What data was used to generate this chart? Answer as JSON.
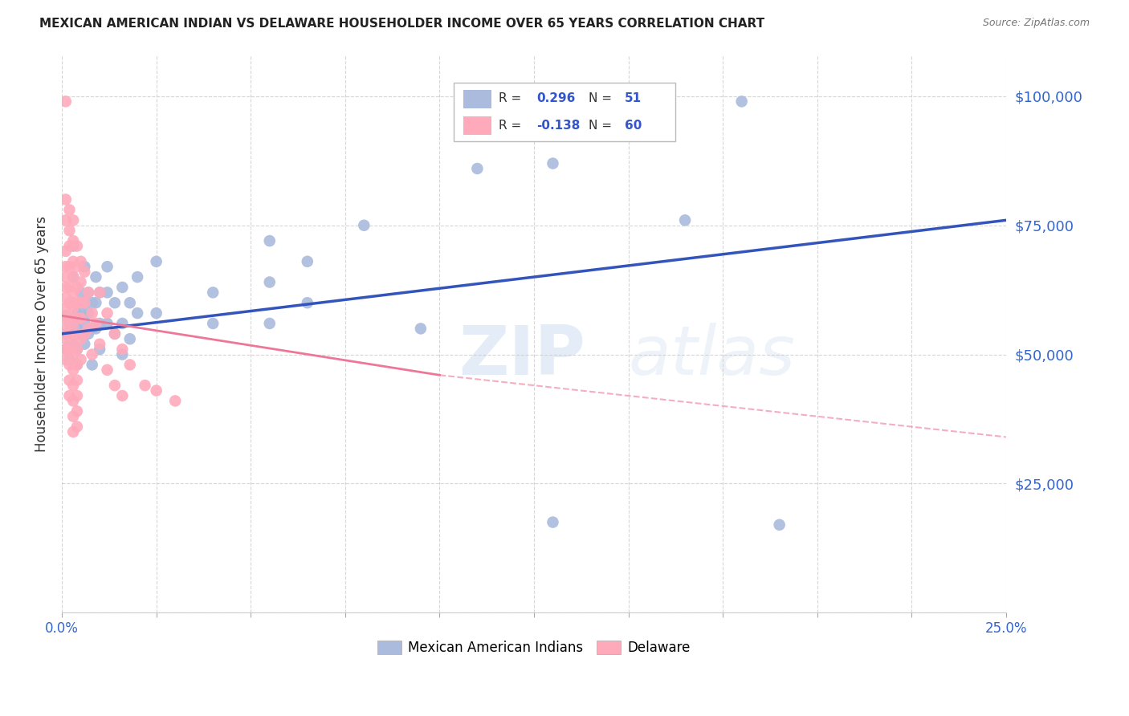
{
  "title": "MEXICAN AMERICAN INDIAN VS DELAWARE HOUSEHOLDER INCOME OVER 65 YEARS CORRELATION CHART",
  "source": "Source: ZipAtlas.com",
  "ylabel": "Householder Income Over 65 years",
  "watermark": "ZIPatlas",
  "y_ticks": [
    0,
    25000,
    50000,
    75000,
    100000
  ],
  "y_tick_labels": [
    "",
    "$25,000",
    "$50,000",
    "$75,000",
    "$100,000"
  ],
  "x_range": [
    0.0,
    0.25
  ],
  "y_range": [
    0,
    108000
  ],
  "blue_color": "#aabbdd",
  "pink_color": "#ffaabb",
  "blue_line_color": "#3355bb",
  "pink_line_color": "#ee7799",
  "blue_scatter": [
    [
      0.001,
      57500
    ],
    [
      0.001,
      54000
    ],
    [
      0.001,
      51000
    ],
    [
      0.002,
      60000
    ],
    [
      0.002,
      56000
    ],
    [
      0.002,
      52000
    ],
    [
      0.002,
      49000
    ],
    [
      0.003,
      71000
    ],
    [
      0.003,
      65000
    ],
    [
      0.003,
      60000
    ],
    [
      0.003,
      56000
    ],
    [
      0.003,
      52000
    ],
    [
      0.004,
      58000
    ],
    [
      0.004,
      55000
    ],
    [
      0.004,
      51000
    ],
    [
      0.004,
      48000
    ],
    [
      0.005,
      62000
    ],
    [
      0.005,
      58000
    ],
    [
      0.005,
      54000
    ],
    [
      0.006,
      67000
    ],
    [
      0.006,
      60000
    ],
    [
      0.006,
      56000
    ],
    [
      0.006,
      52000
    ],
    [
      0.007,
      62000
    ],
    [
      0.007,
      58000
    ],
    [
      0.007,
      54000
    ],
    [
      0.008,
      60000
    ],
    [
      0.008,
      55000
    ],
    [
      0.008,
      48000
    ],
    [
      0.009,
      65000
    ],
    [
      0.009,
      60000
    ],
    [
      0.009,
      55000
    ],
    [
      0.01,
      62000
    ],
    [
      0.01,
      56000
    ],
    [
      0.01,
      51000
    ],
    [
      0.012,
      67000
    ],
    [
      0.012,
      62000
    ],
    [
      0.012,
      56000
    ],
    [
      0.014,
      60000
    ],
    [
      0.014,
      54000
    ],
    [
      0.016,
      63000
    ],
    [
      0.016,
      56000
    ],
    [
      0.016,
      50000
    ],
    [
      0.018,
      60000
    ],
    [
      0.018,
      53000
    ],
    [
      0.02,
      65000
    ],
    [
      0.02,
      58000
    ],
    [
      0.025,
      68000
    ],
    [
      0.025,
      58000
    ],
    [
      0.04,
      62000
    ],
    [
      0.04,
      56000
    ],
    [
      0.055,
      72000
    ],
    [
      0.055,
      64000
    ],
    [
      0.055,
      56000
    ],
    [
      0.065,
      68000
    ],
    [
      0.065,
      60000
    ],
    [
      0.08,
      75000
    ],
    [
      0.095,
      55000
    ],
    [
      0.11,
      86000
    ],
    [
      0.13,
      87000
    ],
    [
      0.15,
      95000
    ],
    [
      0.165,
      76000
    ],
    [
      0.18,
      99000
    ],
    [
      0.19,
      17000
    ],
    [
      0.13,
      17500
    ]
  ],
  "pink_scatter": [
    [
      0.001,
      99000
    ],
    [
      0.001,
      80000
    ],
    [
      0.001,
      76000
    ],
    [
      0.001,
      70000
    ],
    [
      0.001,
      67000
    ],
    [
      0.001,
      65000
    ],
    [
      0.001,
      63000
    ],
    [
      0.001,
      61000
    ],
    [
      0.001,
      59000
    ],
    [
      0.001,
      57000
    ],
    [
      0.001,
      55000
    ],
    [
      0.001,
      53000
    ],
    [
      0.001,
      51000
    ],
    [
      0.001,
      49000
    ],
    [
      0.002,
      78000
    ],
    [
      0.002,
      74000
    ],
    [
      0.002,
      71000
    ],
    [
      0.002,
      67000
    ],
    [
      0.002,
      63000
    ],
    [
      0.002,
      60000
    ],
    [
      0.002,
      57000
    ],
    [
      0.002,
      54000
    ],
    [
      0.002,
      51000
    ],
    [
      0.002,
      48000
    ],
    [
      0.002,
      45000
    ],
    [
      0.002,
      42000
    ],
    [
      0.003,
      76000
    ],
    [
      0.003,
      72000
    ],
    [
      0.003,
      68000
    ],
    [
      0.003,
      65000
    ],
    [
      0.003,
      62000
    ],
    [
      0.003,
      59000
    ],
    [
      0.003,
      56000
    ],
    [
      0.003,
      53000
    ],
    [
      0.003,
      50000
    ],
    [
      0.003,
      47000
    ],
    [
      0.003,
      44000
    ],
    [
      0.003,
      41000
    ],
    [
      0.003,
      38000
    ],
    [
      0.003,
      35000
    ],
    [
      0.004,
      71000
    ],
    [
      0.004,
      67000
    ],
    [
      0.004,
      63000
    ],
    [
      0.004,
      60000
    ],
    [
      0.004,
      57000
    ],
    [
      0.004,
      54000
    ],
    [
      0.004,
      51000
    ],
    [
      0.004,
      48000
    ],
    [
      0.004,
      45000
    ],
    [
      0.004,
      42000
    ],
    [
      0.004,
      39000
    ],
    [
      0.004,
      36000
    ],
    [
      0.005,
      68000
    ],
    [
      0.005,
      64000
    ],
    [
      0.005,
      60000
    ],
    [
      0.005,
      57000
    ],
    [
      0.005,
      53000
    ],
    [
      0.005,
      49000
    ],
    [
      0.006,
      66000
    ],
    [
      0.006,
      60000
    ],
    [
      0.006,
      54000
    ],
    [
      0.007,
      62000
    ],
    [
      0.007,
      55000
    ],
    [
      0.008,
      58000
    ],
    [
      0.008,
      50000
    ],
    [
      0.009,
      56000
    ],
    [
      0.01,
      62000
    ],
    [
      0.01,
      52000
    ],
    [
      0.012,
      58000
    ],
    [
      0.012,
      47000
    ],
    [
      0.014,
      54000
    ],
    [
      0.014,
      44000
    ],
    [
      0.016,
      51000
    ],
    [
      0.016,
      42000
    ],
    [
      0.018,
      48000
    ],
    [
      0.022,
      44000
    ],
    [
      0.025,
      43000
    ],
    [
      0.03,
      41000
    ]
  ],
  "blue_line": {
    "x0": 0.0,
    "y0": 54000,
    "x1": 0.25,
    "y1": 76000
  },
  "pink_line_solid": {
    "x0": 0.0,
    "y0": 57500,
    "x1": 0.1,
    "y1": 46000
  },
  "pink_line_dashed": {
    "x0": 0.1,
    "y0": 46000,
    "x1": 0.25,
    "y1": 34000
  }
}
